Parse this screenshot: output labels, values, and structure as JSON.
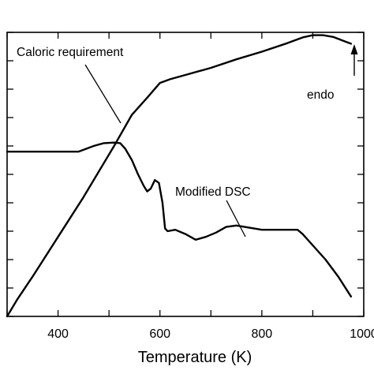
{
  "chart_data": {
    "type": "line",
    "xlabel": "Temperature (K)",
    "xlim": [
      300,
      1000
    ],
    "ylim": [
      0,
      1
    ],
    "x_ticks": [
      300,
      400,
      500,
      600,
      700,
      800,
      900,
      1000
    ],
    "x_tick_labels": [
      {
        "value": 400,
        "label": "400"
      },
      {
        "value": 600,
        "label": "600"
      },
      {
        "value": 800,
        "label": "800"
      },
      {
        "value": 1000,
        "label": "1000"
      }
    ],
    "y_ticks": [
      0,
      0.1,
      0.2,
      0.3,
      0.4,
      0.5,
      0.6,
      0.7,
      0.8,
      0.9,
      1.0
    ],
    "grid": false,
    "series": [
      {
        "name": "Caloric requirement",
        "x": [
          300,
          320,
          350,
          400,
          450,
          480,
          510,
          545,
          575,
          600,
          620,
          650,
          700,
          750,
          800,
          850,
          880,
          900,
          920,
          940,
          960,
          975
        ],
        "y": [
          0.0,
          0.06,
          0.14,
          0.28,
          0.42,
          0.51,
          0.6,
          0.71,
          0.77,
          0.822,
          0.835,
          0.85,
          0.875,
          0.905,
          0.932,
          0.962,
          0.982,
          0.99,
          0.99,
          0.984,
          0.97,
          0.96
        ]
      },
      {
        "name": "Modified DSC",
        "x": [
          300,
          350,
          400,
          440,
          455,
          470,
          490,
          510,
          522,
          532,
          545,
          557,
          568,
          575,
          582,
          590,
          598,
          605,
          610,
          615,
          630,
          650,
          670,
          690,
          710,
          730,
          750,
          800,
          850,
          870,
          880,
          900,
          925,
          950,
          975
        ],
        "y": [
          0.58,
          0.58,
          0.58,
          0.58,
          0.59,
          0.6,
          0.61,
          0.612,
          0.61,
          0.59,
          0.55,
          0.5,
          0.46,
          0.44,
          0.45,
          0.48,
          0.47,
          0.4,
          0.31,
          0.3,
          0.305,
          0.29,
          0.27,
          0.28,
          0.295,
          0.315,
          0.32,
          0.305,
          0.305,
          0.305,
          0.29,
          0.25,
          0.2,
          0.14,
          0.07
        ]
      }
    ],
    "annotations": {
      "caloric_label": "Caloric requirement",
      "dsc_label": "Modified DSC",
      "endo_label": "endo"
    }
  }
}
